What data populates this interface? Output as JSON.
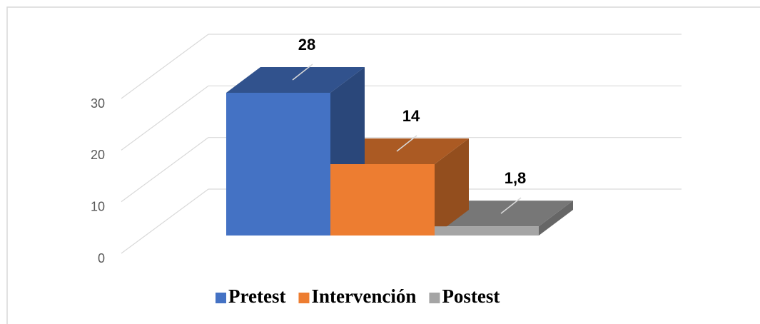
{
  "chart_data": {
    "type": "bar3d",
    "series": [
      {
        "name": "Pretest",
        "color": "#4472c4",
        "values": [
          28
        ]
      },
      {
        "name": "Intervención",
        "color": "#ed7d31",
        "values": [
          14
        ]
      },
      {
        "name": "Postest",
        "color": "#a5a5a5",
        "values": [
          1.8
        ],
        "value_labels": [
          "1,8"
        ]
      }
    ],
    "ylim": [
      0,
      30
    ],
    "yticks": [
      0,
      10,
      20,
      30
    ],
    "grid": true,
    "legend": "bottom"
  }
}
